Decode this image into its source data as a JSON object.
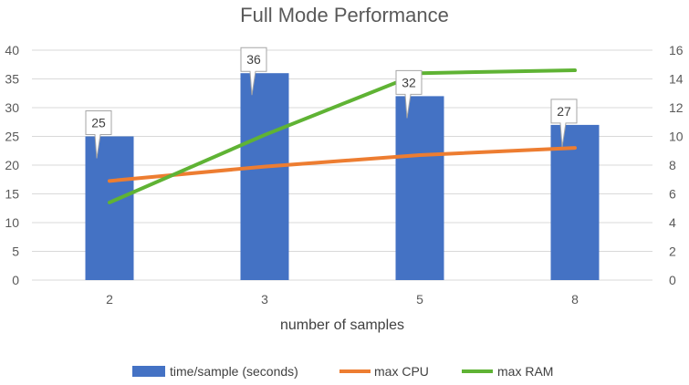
{
  "chart_data": {
    "type": "bar",
    "title": "Full Mode Performance",
    "xlabel": "number of samples",
    "categories": [
      "2",
      "3",
      "5",
      "8"
    ],
    "ylim_left": [
      0,
      40
    ],
    "yticks_left": [
      "0",
      "5",
      "10",
      "15",
      "20",
      "25",
      "30",
      "35",
      "40"
    ],
    "ylim_right": [
      0,
      16
    ],
    "yticks_right": [
      "0",
      "2",
      "4",
      "6",
      "8",
      "10",
      "12",
      "14",
      "16"
    ],
    "grid": true,
    "legend_position": "bottom",
    "series": [
      {
        "name": "time/sample (seconds)",
        "kind": "bar",
        "axis": "left",
        "color": "#4472C4",
        "values": [
          25,
          36,
          32,
          27
        ],
        "data_labels": [
          "25",
          "36",
          "32",
          "27"
        ]
      },
      {
        "name": "max CPU",
        "kind": "line",
        "axis": "right",
        "color": "#ED7D31",
        "values": [
          6.9,
          7.9,
          8.7,
          9.2
        ]
      },
      {
        "name": "max RAM",
        "kind": "line",
        "axis": "right",
        "color": "#5FB334",
        "values": [
          5.4,
          10.1,
          14.4,
          14.6
        ]
      }
    ]
  }
}
